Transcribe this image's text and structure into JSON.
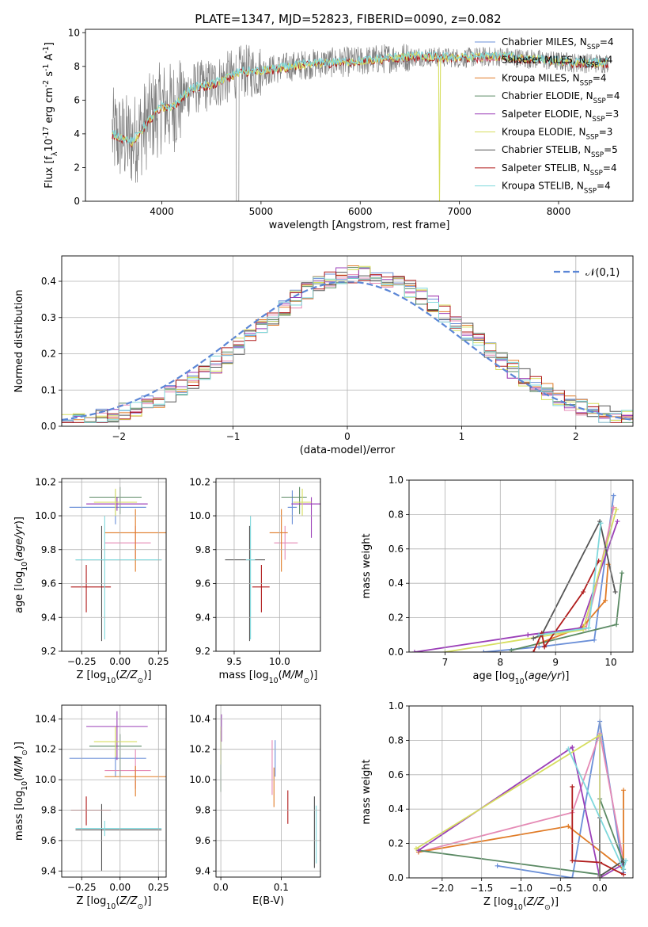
{
  "title": "PLATE=1347, MJD=52823, FIBERID=0090, z=0.082",
  "colors": {
    "chabrier_miles": "#6a8fd8",
    "salpeter_miles": "#e58ab5",
    "kroupa_miles": "#e07b26",
    "chabrier_elodie": "#5b8a64",
    "salpeter_elodie": "#9b3fb8",
    "kroupa_elodie": "#d6de5e",
    "chabrier_stelib": "#555555",
    "salpeter_stelib": "#b01c1c",
    "kroupa_stelib": "#7fd8dc",
    "data": "#808080",
    "normal": "#5b86d6"
  },
  "chart_data": [
    {
      "id": "spectrum",
      "type": "line",
      "xlabel": "wavelength [Angstrom, rest frame]",
      "ylabel": "Flux [f$_\\lambda$10$^{-17}$ erg cm$^{-2}$ s$^{-1}$ A$^{-1}$]",
      "xlim": [
        3230,
        8750
      ],
      "ylim": [
        0,
        10.2
      ],
      "xticks": [
        "4000",
        "5000",
        "6000",
        "7000",
        "8000"
      ],
      "yticks": [
        "0",
        "2",
        "4",
        "6",
        "8",
        "10"
      ],
      "grid": false,
      "legend_position": "right",
      "legend": [
        {
          "label": "Chabrier MILES, N$_{SSP}$=4",
          "color": "chabrier_miles"
        },
        {
          "label": "Salpeter MILES, N$_{SSP}$=4",
          "color": "salpeter_miles"
        },
        {
          "label": "Kroupa MILES, N$_{SSP}$=4",
          "color": "kroupa_miles"
        },
        {
          "label": "Chabrier ELODIE, N$_{SSP}$=4",
          "color": "chabrier_elodie"
        },
        {
          "label": "Salpeter ELODIE, N$_{SSP}$=3",
          "color": "salpeter_elodie"
        },
        {
          "label": "Kroupa ELODIE, N$_{SSP}$=3",
          "color": "kroupa_elodie"
        },
        {
          "label": "Chabrier STELIB, N$_{SSP}$=5",
          "color": "chabrier_stelib"
        },
        {
          "label": "Salpeter STELIB, N$_{SSP}$=4",
          "color": "salpeter_stelib"
        },
        {
          "label": "Kroupa STELIB, N$_{SSP}$=4",
          "color": "kroupa_stelib"
        }
      ],
      "continuum": {
        "x": [
          3500,
          3700,
          3900,
          4000,
          4100,
          4300,
          4500,
          4800,
          5000,
          5300,
          5600,
          6000,
          6300,
          6600,
          7000,
          7400,
          7800,
          8200,
          8500
        ],
        "y": [
          4.0,
          3.5,
          5.0,
          5.6,
          5.5,
          6.7,
          6.9,
          7.7,
          7.7,
          8.0,
          8.2,
          8.3,
          8.5,
          8.6,
          8.5,
          8.6,
          8.4,
          8.2,
          8.2
        ]
      }
    },
    {
      "id": "residuals",
      "type": "histogram",
      "xlabel": "(data-model)/error",
      "ylabel": "Normed distribution",
      "xlim": [
        -2.5,
        2.5
      ],
      "ylim": [
        0,
        0.47
      ],
      "xticks": [
        "−2",
        "−1",
        "0",
        "1",
        "2"
      ],
      "yticks": [
        "0.0",
        "0.1",
        "0.2",
        "0.3",
        "0.4"
      ],
      "grid": true,
      "legend_position": "top-right",
      "legend": [
        {
          "label": "$\\mathcal{N}(0,1)$",
          "color": "normal"
        }
      ],
      "bin_width": 0.1,
      "normal_curve": {
        "mean": 0,
        "sigma": 1
      }
    },
    {
      "id": "age-vs-z",
      "type": "scatter",
      "xlabel": "Z [log$_{10}$($Z/Z_\\odot$)]",
      "ylabel": "age  [log$_{10}$($age/yr$)]",
      "xlim": [
        -0.38,
        0.3
      ],
      "ylim": [
        9.2,
        10.22
      ],
      "xticks": [
        "−0.25",
        "0.00",
        "0.25"
      ],
      "yticks": [
        "9.2",
        "9.4",
        "9.6",
        "9.8",
        "10.0",
        "10.2"
      ],
      "grid": true,
      "points": [
        {
          "s": "chabrier_miles",
          "x": -0.03,
          "y": 10.05,
          "xe": [
            0.3,
            0.2
          ],
          "ye": [
            0.1,
            0.1
          ]
        },
        {
          "s": "salpeter_miles",
          "x": 0.1,
          "y": 9.84,
          "xe": [
            0.2,
            0.1
          ],
          "ye": [
            0.1,
            0.1
          ]
        },
        {
          "s": "kroupa_miles",
          "x": 0.1,
          "y": 9.9,
          "xe": [
            0.2,
            0.2
          ],
          "ye": [
            0.23,
            0.14
          ]
        },
        {
          "s": "chabrier_elodie",
          "x": 0.0,
          "y": 10.11,
          "xe": [
            0.2,
            0.14
          ],
          "ye": [
            0.1,
            0.06
          ]
        },
        {
          "s": "salpeter_elodie",
          "x": -0.02,
          "y": 10.07,
          "xe": [
            0.2,
            0.2
          ],
          "ye": [
            0.04,
            0.04
          ]
        },
        {
          "s": "kroupa_elodie",
          "x": -0.03,
          "y": 10.08,
          "xe": [
            0.14,
            0.14
          ],
          "ye": [
            0.08,
            0.08
          ]
        },
        {
          "s": "chabrier_stelib",
          "x": -0.12,
          "y": 9.74,
          "xe": [
            0.17,
            0.39
          ],
          "ye": [
            0.48,
            0.2
          ]
        },
        {
          "s": "salpeter_stelib",
          "x": -0.22,
          "y": 9.58,
          "xe": [
            0.1,
            0.16
          ],
          "ye": [
            0.15,
            0.13
          ]
        },
        {
          "s": "kroupa_stelib",
          "x": -0.1,
          "y": 9.74,
          "xe": [
            0.19,
            0.37
          ],
          "ye": [
            0.47,
            0.26
          ]
        }
      ]
    },
    {
      "id": "age-vs-mass",
      "type": "scatter",
      "xlabel": "mass [log$_{10}$($M/M_\\odot$)]",
      "ylabel": "",
      "xlim": [
        9.3,
        10.45
      ],
      "ylim": [
        9.2,
        10.22
      ],
      "xticks": [
        "9.5",
        "10.0"
      ],
      "yticks": [
        "9.2",
        "9.4",
        "9.6",
        "9.8",
        "10.0",
        "10.2"
      ],
      "grid": true,
      "points": [
        {
          "s": "chabrier_miles",
          "x": 10.14,
          "y": 10.05,
          "xe": [
            0.05,
            0.05
          ],
          "ye": [
            0.1,
            0.1
          ]
        },
        {
          "s": "salpeter_miles",
          "x": 10.06,
          "y": 9.84,
          "xe": [
            0.12,
            0.14
          ],
          "ye": [
            0.1,
            0.1
          ]
        },
        {
          "s": "kroupa_miles",
          "x": 10.02,
          "y": 9.9,
          "xe": [
            0.13,
            0.07
          ],
          "ye": [
            0.23,
            0.14
          ]
        },
        {
          "s": "chabrier_elodie",
          "x": 10.22,
          "y": 10.11,
          "xe": [
            0.2,
            0.08
          ],
          "ye": [
            0.1,
            0.06
          ]
        },
        {
          "s": "salpeter_elodie",
          "x": 10.35,
          "y": 10.07,
          "xe": [
            0.22,
            0.1
          ],
          "ye": [
            0.2,
            0.04
          ]
        },
        {
          "s": "kroupa_elodie",
          "x": 10.25,
          "y": 10.08,
          "xe": [
            0.1,
            0.1
          ],
          "ye": [
            0.08,
            0.08
          ]
        },
        {
          "s": "chabrier_stelib",
          "x": 9.67,
          "y": 9.74,
          "xe": [
            0.27,
            0.17
          ],
          "ye": [
            0.48,
            0.2
          ]
        },
        {
          "s": "salpeter_stelib",
          "x": 9.8,
          "y": 9.58,
          "xe": [
            0.1,
            0.09
          ],
          "ye": [
            0.15,
            0.13
          ]
        },
        {
          "s": "kroupa_stelib",
          "x": 9.68,
          "y": 9.74,
          "xe": [
            0.05,
            0.05
          ],
          "ye": [
            0.47,
            0.26
          ]
        }
      ]
    },
    {
      "id": "weight-vs-age",
      "type": "line",
      "xlabel": "age  [log$_{10}$($age/yr$)]",
      "ylabel": "mass weight",
      "xlim": [
        6.35,
        10.4
      ],
      "ylim": [
        0,
        1.0
      ],
      "xticks": [
        "7",
        "8",
        "9",
        "10"
      ],
      "yticks": [
        "0.0",
        "0.2",
        "0.4",
        "0.6",
        "0.8",
        "1.0"
      ],
      "grid": true,
      "series": [
        {
          "s": "chabrier_miles",
          "x": [
            7.7,
            8.7,
            9.7,
            10.05
          ],
          "y": [
            0.0,
            0.03,
            0.07,
            0.91
          ]
        },
        {
          "s": "salpeter_miles",
          "x": [
            8.5,
            9.55,
            9.75,
            10.05
          ],
          "y": [
            0.1,
            0.14,
            0.4,
            0.84
          ]
        },
        {
          "s": "kroupa_miles",
          "x": [
            8.7,
            9.5,
            9.9,
            9.95
          ],
          "y": [
            0.05,
            0.15,
            0.3,
            0.51
          ]
        },
        {
          "s": "chabrier_elodie",
          "x": [
            8.2,
            10.1,
            10.2
          ],
          "y": [
            0.01,
            0.16,
            0.46
          ]
        },
        {
          "s": "salpeter_elodie",
          "x": [
            6.45,
            8.5,
            9.45,
            10.12
          ],
          "y": [
            0.0,
            0.1,
            0.14,
            0.76
          ]
        },
        {
          "s": "kroupa_elodie",
          "x": [
            7.0,
            9.5,
            10.1
          ],
          "y": [
            0.0,
            0.13,
            0.83
          ]
        },
        {
          "s": "chabrier_stelib",
          "x": [
            8.6,
            8.75,
            9.8,
            10.08
          ],
          "y": [
            0.08,
            0.1,
            0.76,
            0.35
          ]
        },
        {
          "s": "salpeter_stelib",
          "x": [
            8.6,
            8.75,
            8.8,
            9.5,
            9.78
          ],
          "y": [
            0.0,
            0.11,
            0.03,
            0.35,
            0.53
          ]
        },
        {
          "s": "kroupa_stelib",
          "x": [
            8.7,
            9.6,
            9.82
          ],
          "y": [
            0.1,
            0.14,
            0.75
          ]
        }
      ]
    },
    {
      "id": "mass-vs-z",
      "type": "scatter",
      "xlabel": "Z [log$_{10}$($Z/Z_\\odot$)]",
      "ylabel": "mass [log$_{10}$($M/M_\\odot$)]",
      "xlim": [
        -0.38,
        0.3
      ],
      "ylim": [
        9.36,
        10.49
      ],
      "xticks": [
        "−0.25",
        "0.00",
        "0.25"
      ],
      "yticks": [
        "9.4",
        "9.6",
        "9.8",
        "10.0",
        "10.2",
        "10.4"
      ],
      "grid": true,
      "points": [
        {
          "s": "chabrier_miles",
          "x": -0.03,
          "y": 10.14,
          "xe": [
            0.3,
            0.2
          ],
          "ye": [
            0.12,
            0.12
          ]
        },
        {
          "s": "salpeter_miles",
          "x": 0.1,
          "y": 10.06,
          "xe": [
            0.2,
            0.1
          ],
          "ye": [
            0.12,
            0.14
          ]
        },
        {
          "s": "kroupa_miles",
          "x": 0.1,
          "y": 10.02,
          "xe": [
            0.2,
            0.2
          ],
          "ye": [
            0.13,
            0.07
          ]
        },
        {
          "s": "chabrier_elodie",
          "x": 0.0,
          "y": 10.22,
          "xe": [
            0.2,
            0.14
          ],
          "ye": [
            0.2,
            0.08
          ]
        },
        {
          "s": "salpeter_elodie",
          "x": -0.02,
          "y": 10.35,
          "xe": [
            0.2,
            0.2
          ],
          "ye": [
            0.22,
            0.1
          ]
        },
        {
          "s": "kroupa_elodie",
          "x": -0.03,
          "y": 10.25,
          "xe": [
            0.14,
            0.14
          ],
          "ye": [
            0.1,
            0.1
          ]
        },
        {
          "s": "chabrier_stelib",
          "x": -0.12,
          "y": 9.67,
          "xe": [
            0.17,
            0.39
          ],
          "ye": [
            0.27,
            0.17
          ]
        },
        {
          "s": "salpeter_stelib",
          "x": -0.22,
          "y": 9.8,
          "xe": [
            0.1,
            0.16
          ],
          "ye": [
            0.1,
            0.09
          ]
        },
        {
          "s": "kroupa_stelib",
          "x": -0.1,
          "y": 9.68,
          "xe": [
            0.19,
            0.37
          ],
          "ye": [
            0.05,
            0.05
          ]
        }
      ]
    },
    {
      "id": "mass-vs-ebv",
      "type": "scatter",
      "xlabel": "E(B-V)",
      "ylabel": "",
      "xlim": [
        -0.008,
        0.165
      ],
      "ylim": [
        9.36,
        10.49
      ],
      "xticks": [
        "0.0",
        "0.1"
      ],
      "yticks": [
        "9.4",
        "9.6",
        "9.8",
        "10.0",
        "10.2",
        "10.4"
      ],
      "grid": true,
      "points": [
        {
          "s": "chabrier_miles",
          "x": 0.09,
          "y": 10.14,
          "xe": [
            0,
            0
          ],
          "ye": [
            0.12,
            0.12
          ]
        },
        {
          "s": "salpeter_miles",
          "x": 0.085,
          "y": 10.06,
          "xe": [
            0,
            0
          ],
          "ye": [
            0.16,
            0.2
          ]
        },
        {
          "s": "kroupa_miles",
          "x": 0.088,
          "y": 10.02,
          "xe": [
            0,
            0
          ],
          "ye": [
            0.2,
            0.06
          ]
        },
        {
          "s": "chabrier_elodie",
          "x": 0.0,
          "y": 10.22,
          "xe": [
            0,
            0
          ],
          "ye": [
            0.3,
            0.1
          ]
        },
        {
          "s": "salpeter_elodie",
          "x": 0.001,
          "y": 10.35,
          "xe": [
            0,
            0
          ],
          "ye": [
            0.1,
            0.08
          ]
        },
        {
          "s": "kroupa_elodie",
          "x": 0.0,
          "y": 10.25,
          "xe": [
            0,
            0
          ],
          "ye": [
            0.15,
            0.1
          ]
        },
        {
          "s": "chabrier_stelib",
          "x": 0.155,
          "y": 9.67,
          "xe": [
            0,
            0
          ],
          "ye": [
            0.25,
            0.22
          ]
        },
        {
          "s": "salpeter_stelib",
          "x": 0.111,
          "y": 9.83,
          "xe": [
            0,
            0
          ],
          "ye": [
            0.12,
            0.1
          ]
        },
        {
          "s": "kroupa_stelib",
          "x": 0.158,
          "y": 9.65,
          "xe": [
            0,
            0
          ],
          "ye": [
            0.2,
            0.18
          ]
        }
      ]
    },
    {
      "id": "weight-vs-z",
      "type": "line",
      "xlabel": "Z [log$_{10}$($Z/Z_\\odot$)]",
      "ylabel": "mass weight",
      "xlim": [
        -2.42,
        0.42
      ],
      "ylim": [
        0,
        1.0
      ],
      "xticks": [
        "−2.0",
        "−1.5",
        "−1.0",
        "−0.5",
        "0.0"
      ],
      "yticks": [
        "0.0",
        "0.2",
        "0.4",
        "0.6",
        "0.8",
        "1.0"
      ],
      "grid": true,
      "series": [
        {
          "s": "chabrier_miles",
          "x": [
            -1.3,
            -0.35,
            0.0,
            0.3
          ],
          "y": [
            0.07,
            0.0,
            0.91,
            0.03
          ]
        },
        {
          "s": "salpeter_miles",
          "x": [
            -2.3,
            -0.35,
            0.0,
            0.3
          ],
          "y": [
            0.15,
            0.38,
            0.84,
            0.1
          ]
        },
        {
          "s": "kroupa_miles",
          "x": [
            -2.3,
            -0.4,
            0.3,
            0.3
          ],
          "y": [
            0.15,
            0.3,
            0.05,
            0.51
          ]
        },
        {
          "s": "chabrier_elodie",
          "x": [
            -2.3,
            0.0,
            0.0,
            0.3
          ],
          "y": [
            0.16,
            0.02,
            0.46,
            0.09
          ]
        },
        {
          "s": "salpeter_elodie",
          "x": [
            -2.3,
            -0.35,
            0.0,
            0.3
          ],
          "y": [
            0.16,
            0.76,
            0.0,
            0.08
          ]
        },
        {
          "s": "kroupa_elodie",
          "x": [
            -2.33,
            0.0,
            0.0
          ],
          "y": [
            0.17,
            0.83,
            0.0
          ]
        },
        {
          "s": "chabrier_stelib",
          "x": [
            0.0,
            0.0,
            0.3,
            0.3
          ],
          "y": [
            0.35,
            0.01,
            0.1,
            0.05
          ]
        },
        {
          "s": "salpeter_stelib",
          "x": [
            -0.35,
            -0.35,
            0.0,
            0.3
          ],
          "y": [
            0.53,
            0.1,
            0.09,
            0.02
          ]
        },
        {
          "s": "kroupa_stelib",
          "x": [
            -0.4,
            0.3,
            0.33
          ],
          "y": [
            0.75,
            0.05,
            0.1
          ]
        }
      ]
    }
  ]
}
